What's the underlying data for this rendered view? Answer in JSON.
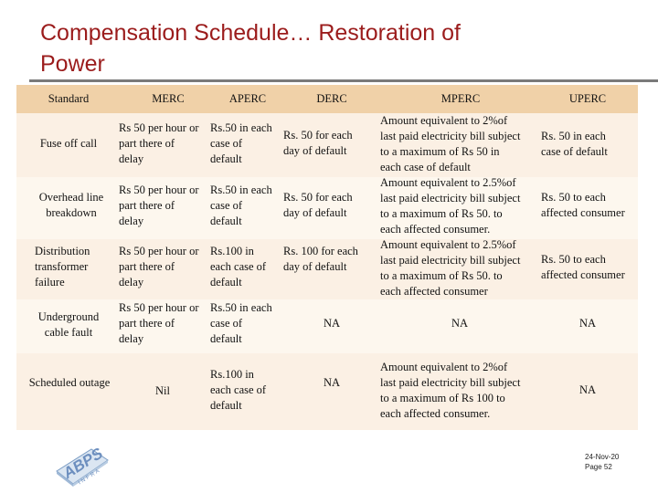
{
  "title_line1": "Compensation Schedule… Restoration of",
  "title_line2": "Power",
  "headers": {
    "standard": "Standard",
    "merc": "MERC",
    "aperc": "APERC",
    "derc": "DERC",
    "mperc": "MPERC",
    "uperc": "UPERC"
  },
  "rows": [
    {
      "standard": [
        "Fuse off call"
      ],
      "merc": [
        "Rs 50 per hour or",
        "part there of",
        "delay"
      ],
      "aperc": [
        "Rs.50 in each",
        "case of",
        "default"
      ],
      "derc": [
        "Rs. 50 for each",
        "day of default"
      ],
      "mperc": [
        "Amount equivalent to 2%of",
        "last paid electricity bill subject",
        "to a maximum of Rs 50 in",
        "each case of default"
      ],
      "uperc": [
        "Rs. 50 in each",
        "case of default"
      ]
    },
    {
      "standard": [
        "Overhead line",
        "breakdown"
      ],
      "merc": [
        "Rs 50 per hour or",
        "part there of",
        "delay"
      ],
      "aperc": [
        "Rs.50 in each",
        "case of",
        "default"
      ],
      "derc": [
        "Rs. 50 for each",
        "day of default"
      ],
      "mperc": [
        "Amount equivalent to 2.5%of",
        "last paid electricity bill subject",
        "to a maximum of Rs 50. to",
        "each affected consumer."
      ],
      "uperc": [
        "Rs. 50 to each",
        "affected consumer"
      ]
    },
    {
      "standard": [
        "Distribution",
        "transformer",
        "failure"
      ],
      "merc": [
        "Rs 50 per hour or",
        "part there of",
        "delay"
      ],
      "aperc": [
        "Rs.100 in",
        "each case of",
        "default"
      ],
      "derc": [
        "Rs. 100 for each",
        "day of default"
      ],
      "mperc": [
        "Amount equivalent to 2.5%of",
        "last paid electricity bill subject",
        "to a maximum of Rs 50. to",
        "each affected consumer"
      ],
      "uperc": [
        "Rs. 50 to each",
        "affected consumer"
      ]
    },
    {
      "standard": [
        "Underground",
        "cable fault"
      ],
      "merc": [
        "Rs 50 per hour or",
        "part there of",
        "delay"
      ],
      "aperc": [
        "Rs.50 in each",
        "case of",
        "default"
      ],
      "derc": [
        "NA"
      ],
      "mperc": [
        "NA"
      ],
      "uperc": [
        "NA"
      ]
    },
    {
      "standard": [
        "Scheduled outage"
      ],
      "merc": [
        "Nil"
      ],
      "aperc": [
        "Rs.100 in",
        "each case of",
        "default"
      ],
      "derc": [
        "NA"
      ],
      "mperc": [
        "Amount equivalent to 2%of",
        "last paid electricity bill subject",
        "to a maximum of Rs 100 to",
        "each affected consumer."
      ],
      "uperc": [
        "NA"
      ]
    }
  ],
  "logo": {
    "text": "ABPS",
    "subtext": "INFRA"
  },
  "footer": {
    "date": "24-Nov-20",
    "page": "Page 52"
  }
}
